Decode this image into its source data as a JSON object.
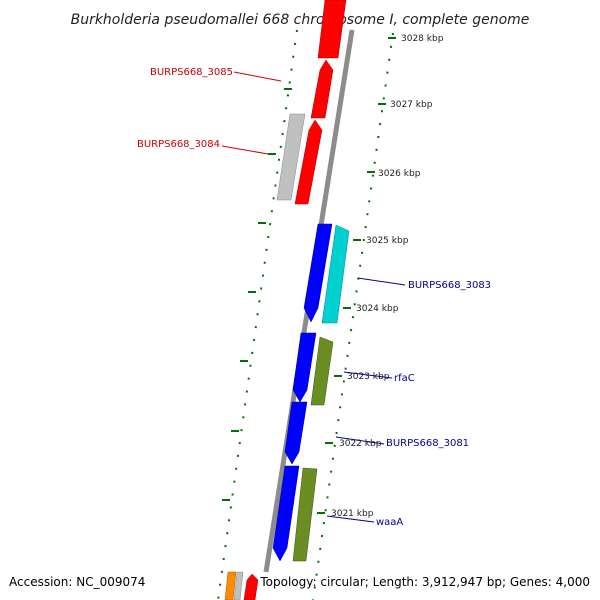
{
  "title": "Burkholderia pseudomallei 668 chromosome I, complete genome",
  "footer": {
    "accession": "Accession: NC_009074",
    "topology": "Topology: circular; Length: 3,912,947 bp; Genes: 4,000"
  },
  "colors": {
    "red": "#ff0000",
    "grey": "#c0c0c0",
    "blue": "#0000ff",
    "cyan": "#00d0d0",
    "olive": "#6b8e23",
    "orange": "#ff8c00",
    "tick_green": "#007000",
    "red_label": "#cc0000",
    "blue_label": "#000099"
  },
  "scale_ticks": [
    {
      "label": "3028 kbp"
    },
    {
      "label": "3027 kbp"
    },
    {
      "label": "3026 kbp"
    },
    {
      "label": "3025 kbp"
    },
    {
      "label": "3024 kbp"
    },
    {
      "label": "3023 kbp"
    },
    {
      "label": "3022 kbp"
    },
    {
      "label": "3021 kbp"
    }
  ],
  "gene_labels": [
    {
      "text": "BURPS668_3085",
      "side": "left"
    },
    {
      "text": "BURPS668_3084",
      "side": "left"
    },
    {
      "text": "BURPS668_3083",
      "side": "right"
    },
    {
      "text": "rfaC",
      "side": "right"
    },
    {
      "text": "BURPS668_3081",
      "side": "right"
    },
    {
      "text": "waaA",
      "side": "right"
    }
  ]
}
